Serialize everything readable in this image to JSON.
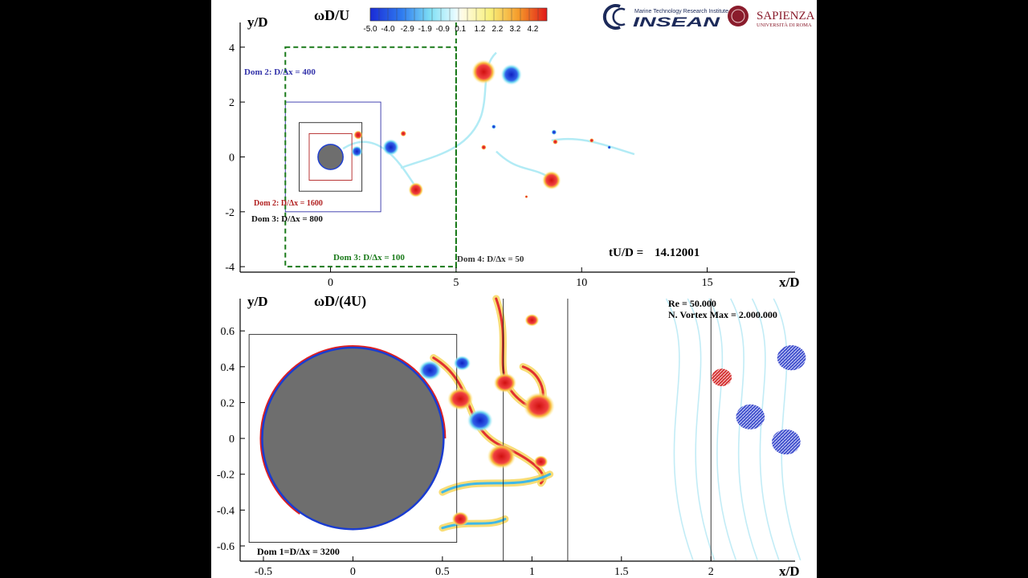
{
  "logos": {
    "insean_small": "Marine Technology Research Institute",
    "insean_big": "INSEAN",
    "sapienza_big": "SAPIENZA",
    "sapienza_small": "UNIVERSITÀ DI ROMA"
  },
  "colors": {
    "background": "#000000",
    "panel": "#ffffff",
    "domain_red": "#b22222",
    "domain_blue": "#3333aa",
    "domain_green": "#1a7a1a",
    "cylinder": "#6e6e6e",
    "positive_vorticity": "#e02020",
    "negative_vorticity": "#1a3cd0"
  },
  "chart_data": [
    {
      "type": "heatmap",
      "title": "ωD/U",
      "xlabel": "x/D",
      "ylabel": "y/D",
      "xlim": [
        -3.6,
        18.5
      ],
      "ylim": [
        -4.2,
        4.9
      ],
      "x_ticks": [
        "0",
        "5",
        "10",
        "15"
      ],
      "x_tick_values": [
        0,
        5,
        10,
        15
      ],
      "y_ticks": [
        "4",
        "2",
        "0",
        "-2",
        "-4"
      ],
      "y_tick_values": [
        4,
        2,
        0,
        -2,
        -4
      ],
      "colorbar": {
        "labels": [
          "-5.0",
          "-4.0",
          "-2.9",
          "-1.9",
          "-0.9",
          "0.1",
          "1.2",
          "2.2",
          "3.2",
          "4.2"
        ],
        "values": [
          -5.0,
          -4.0,
          -2.9,
          -1.9,
          -0.9,
          0.1,
          1.2,
          2.2,
          3.2,
          4.2
        ],
        "range": [
          -5.0,
          5.0
        ]
      },
      "time_label": "tU/D =",
      "time_value": "14.12001",
      "domains": [
        {
          "label": "Dom 2: D/Δx = 400",
          "x": [
            -1.8,
            2.0
          ],
          "y": [
            -2.0,
            2.0
          ],
          "style": "blue"
        },
        {
          "label": "Dom 2: D/Δx = 1600",
          "x": [
            -0.85,
            0.85
          ],
          "y": [
            -0.85,
            0.85
          ],
          "style": "red"
        },
        {
          "label": "Dom 3: D/Δx = 800",
          "x": [
            -1.25,
            1.25
          ],
          "y": [
            -1.25,
            1.25
          ],
          "style": "black"
        },
        {
          "label": "Dom 3: D/Δx = 100",
          "x": [
            -1.8,
            5.0
          ],
          "y": [
            -4.0,
            4.0
          ],
          "style": "green-dashed"
        },
        {
          "label": "Dom 4: D/Δx = 50",
          "x": [
            5.0,
            18.5
          ],
          "y": [
            -4.2,
            4.9
          ],
          "style": "none"
        }
      ],
      "cylinder": {
        "cx": 0.0,
        "cy": 0.0,
        "r": 0.5
      },
      "vortices": [
        {
          "x": 1.1,
          "y": 0.8,
          "sign": "+",
          "r": 0.12
        },
        {
          "x": 1.05,
          "y": 0.2,
          "sign": "-",
          "r": 0.15
        },
        {
          "x": 2.4,
          "y": 0.35,
          "sign": "-",
          "r": 0.22
        },
        {
          "x": 2.9,
          "y": 0.85,
          "sign": "+",
          "r": 0.08
        },
        {
          "x": 3.4,
          "y": -1.2,
          "sign": "+",
          "r": 0.2
        },
        {
          "x": 6.1,
          "y": 3.1,
          "sign": "+",
          "r": 0.32
        },
        {
          "x": 7.2,
          "y": 3.0,
          "sign": "-",
          "r": 0.28
        },
        {
          "x": 6.1,
          "y": 0.35,
          "sign": "+",
          "r": 0.07
        },
        {
          "x": 6.5,
          "y": 1.1,
          "sign": "-",
          "r": 0.06
        },
        {
          "x": 8.8,
          "y": -0.85,
          "sign": "+",
          "r": 0.25
        },
        {
          "x": 8.9,
          "y": 0.9,
          "sign": "-",
          "r": 0.07
        },
        {
          "x": 8.95,
          "y": 0.55,
          "sign": "+",
          "r": 0.07
        },
        {
          "x": 10.4,
          "y": 0.6,
          "sign": "+",
          "r": 0.06
        },
        {
          "x": 11.1,
          "y": 0.35,
          "sign": "-",
          "r": 0.05
        },
        {
          "x": 7.8,
          "y": -1.45,
          "sign": "+",
          "r": 0.04
        }
      ]
    },
    {
      "type": "heatmap",
      "title": "ωD/(4U)",
      "xlabel": "x/D",
      "ylabel": "y/D",
      "xlim": [
        -0.63,
        2.47
      ],
      "ylim": [
        -0.685,
        0.78
      ],
      "x_ticks": [
        "-0.5",
        "0",
        "0.5",
        "1",
        "1.5",
        "2"
      ],
      "x_tick_values": [
        -0.5,
        0,
        0.5,
        1,
        1.5,
        2
      ],
      "y_ticks": [
        "0.6",
        "0.4",
        "0.2",
        "0",
        "-0.2",
        "-0.4",
        "-0.6"
      ],
      "y_tick_values": [
        0.6,
        0.4,
        0.2,
        0,
        -0.2,
        -0.4,
        -0.6
      ],
      "re_label": "Re = 50.000",
      "nvortex_label": "N. Vortex Max =  2.000.000",
      "domain_label": "Dom 1=D/Δx = 3200",
      "domain1": {
        "x": [
          -0.58,
          0.58
        ],
        "y": [
          -0.58,
          0.58
        ]
      },
      "vertical_lines": [
        0.84,
        1.2,
        2.0
      ],
      "cylinder": {
        "cx": 0.0,
        "cy": 0.0,
        "r": 0.5
      },
      "vortices": [
        {
          "x": 0.43,
          "y": 0.38,
          "sign": "-",
          "r": 0.04
        },
        {
          "x": 0.61,
          "y": 0.42,
          "sign": "-",
          "r": 0.03
        },
        {
          "x": 0.6,
          "y": 0.22,
          "sign": "+",
          "r": 0.045
        },
        {
          "x": 0.71,
          "y": 0.1,
          "sign": "-",
          "r": 0.045
        },
        {
          "x": 0.85,
          "y": 0.31,
          "sign": "+",
          "r": 0.04
        },
        {
          "x": 1.04,
          "y": 0.18,
          "sign": "+",
          "r": 0.055
        },
        {
          "x": 0.83,
          "y": -0.1,
          "sign": "+",
          "r": 0.05
        },
        {
          "x": 1.0,
          "y": 0.66,
          "sign": "+",
          "r": 0.025
        },
        {
          "x": 1.05,
          "y": -0.13,
          "sign": "+",
          "r": 0.025
        },
        {
          "x": 0.6,
          "y": -0.45,
          "sign": "+",
          "r": 0.03
        },
        {
          "x": 2.06,
          "y": 0.34,
          "sign": "+",
          "r": 0.035
        },
        {
          "x": 2.22,
          "y": 0.12,
          "sign": "-",
          "r": 0.05
        },
        {
          "x": 2.42,
          "y": -0.02,
          "sign": "-",
          "r": 0.05
        },
        {
          "x": 2.45,
          "y": 0.45,
          "sign": "-",
          "r": 0.05
        }
      ]
    }
  ]
}
